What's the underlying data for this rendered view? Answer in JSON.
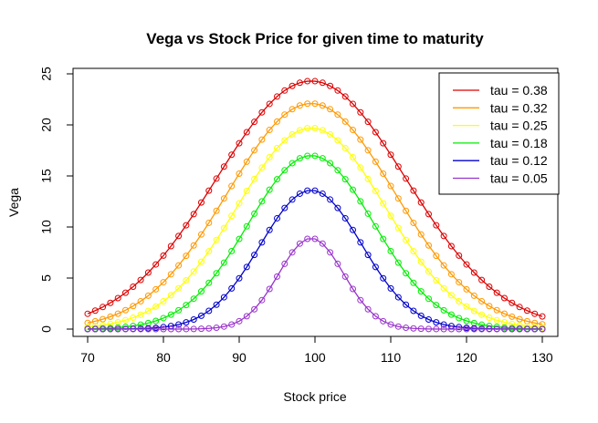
{
  "chart_data": {
    "type": "line",
    "title": "Vega vs Stock Price for given time to maturity",
    "xlabel": "Stock price",
    "ylabel": "Vega",
    "xlim": [
      70,
      130
    ],
    "ylim": [
      0,
      25
    ],
    "x_ticks": [
      70,
      80,
      90,
      100,
      110,
      120,
      130
    ],
    "y_ticks": [
      0,
      5,
      10,
      15,
      20,
      25
    ],
    "legend_position": "top-right",
    "grid": false,
    "markers": "open-circle",
    "x": [
      70,
      71,
      72,
      73,
      74,
      75,
      76,
      77,
      78,
      79,
      80,
      81,
      82,
      83,
      84,
      85,
      86,
      87,
      88,
      89,
      90,
      91,
      92,
      93,
      94,
      95,
      96,
      97,
      98,
      99,
      100,
      101,
      102,
      103,
      104,
      105,
      106,
      107,
      108,
      109,
      110,
      111,
      112,
      113,
      114,
      115,
      116,
      117,
      118,
      119,
      120,
      121,
      122,
      123,
      124,
      125,
      126,
      127,
      128,
      129,
      130
    ],
    "series": [
      {
        "name": "tau = 0.38",
        "color": "#DD0000",
        "peak": 24.3,
        "sigma": 12.5
      },
      {
        "name": "tau = 0.32",
        "color": "#FF9900",
        "peak": 22.1,
        "sigma": 11.0
      },
      {
        "name": "tau = 0.25",
        "color": "#FFFF00",
        "peak": 19.7,
        "sigma": 9.8
      },
      {
        "name": "tau = 0.18",
        "color": "#00EE00",
        "peak": 17.0,
        "sigma": 8.3
      },
      {
        "name": "tau = 0.12",
        "color": "#0000CC",
        "peak": 13.6,
        "sigma": 6.7
      },
      {
        "name": "tau = 0.05",
        "color": "#9933CC",
        "peak": 8.9,
        "sigma": 4.3
      }
    ]
  }
}
